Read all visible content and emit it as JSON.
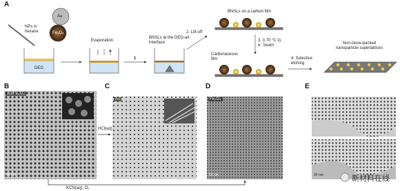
{
  "panel_a": {
    "label": "A",
    "pipette_label": "NPs in hexane",
    "au_label": "Au",
    "fe_label": "Fe₃O₄",
    "beaker_label": "DEG",
    "step_evaporation": "Evaporation",
    "step_1": "1",
    "interface_label": "BNSLs at the DEG-air interface",
    "step_2": "2. Lift-off",
    "film_label": "BNSLs on a carbon film",
    "step_3": "3. i) 70 °C ii) e⁻ beam",
    "carbon_label": "Carbonaceous film",
    "step_4": "4. Selective etching",
    "result_label": "Non-close-packed nanoparticle superlattices"
  },
  "panel_b": {
    "label": "B",
    "tag": "Au/Fe₃O₄",
    "scale": "50 nm"
  },
  "panel_c": {
    "label": "C",
    "tag": "Au"
  },
  "panel_d": {
    "label": "D",
    "tag": "Fe₃O₄",
    "scale": "50 nm"
  },
  "panel_e": {
    "label": "E",
    "scale": "50 nm"
  },
  "arrows": {
    "hcl": "HCl(aq)",
    "kcn": "KCN(aq), O₂"
  },
  "watermark": "新材料在线"
}
